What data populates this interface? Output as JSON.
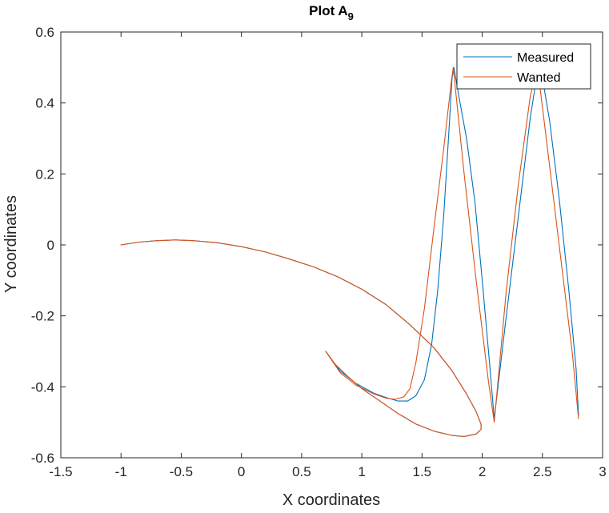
{
  "chart_data": {
    "type": "line",
    "title_main": "Plot A",
    "title_sub": "9",
    "xlabel": "X coordinates",
    "ylabel": "Y coordinates",
    "xlim": [
      -1.5,
      3
    ],
    "ylim": [
      -0.6,
      0.6
    ],
    "grid": false,
    "legend_position": "top-right",
    "x_ticks": [
      "-1.5",
      "-1",
      "-0.5",
      "0",
      "0.5",
      "1",
      "1.5",
      "2",
      "2.5",
      "3"
    ],
    "y_ticks": [
      "-0.6",
      "-0.4",
      "-0.2",
      "0",
      "0.2",
      "0.4",
      "0.6"
    ],
    "series": [
      {
        "name": "Measured",
        "color": "#0072BD",
        "points": [
          [
            -1.0,
            0.0
          ],
          [
            -0.85,
            0.008
          ],
          [
            -0.7,
            0.012
          ],
          [
            -0.55,
            0.014
          ],
          [
            -0.4,
            0.012
          ],
          [
            -0.2,
            0.006
          ],
          [
            0.0,
            -0.005
          ],
          [
            0.2,
            -0.02
          ],
          [
            0.4,
            -0.04
          ],
          [
            0.6,
            -0.062
          ],
          [
            0.8,
            -0.09
          ],
          [
            1.0,
            -0.125
          ],
          [
            1.2,
            -0.168
          ],
          [
            1.4,
            -0.225
          ],
          [
            1.6,
            -0.29
          ],
          [
            1.75,
            -0.355
          ],
          [
            1.87,
            -0.42
          ],
          [
            1.95,
            -0.47
          ],
          [
            1.99,
            -0.505
          ],
          [
            1.99,
            -0.52
          ],
          [
            1.95,
            -0.533
          ],
          [
            1.85,
            -0.54
          ],
          [
            1.75,
            -0.537
          ],
          [
            1.6,
            -0.525
          ],
          [
            1.45,
            -0.505
          ],
          [
            1.3,
            -0.475
          ],
          [
            1.15,
            -0.44
          ],
          [
            1.0,
            -0.405
          ],
          [
            0.88,
            -0.37
          ],
          [
            0.78,
            -0.337
          ],
          [
            0.7,
            -0.3
          ],
          [
            0.82,
            -0.355
          ],
          [
            0.95,
            -0.39
          ],
          [
            1.1,
            -0.418
          ],
          [
            1.2,
            -0.43
          ],
          [
            1.3,
            -0.44
          ],
          [
            1.38,
            -0.44
          ],
          [
            1.45,
            -0.425
          ],
          [
            1.52,
            -0.38
          ],
          [
            1.58,
            -0.28
          ],
          [
            1.63,
            -0.13
          ],
          [
            1.68,
            0.08
          ],
          [
            1.72,
            0.3
          ],
          [
            1.75,
            0.47
          ],
          [
            1.765,
            0.5
          ],
          [
            1.8,
            0.43
          ],
          [
            1.87,
            0.3
          ],
          [
            1.94,
            0.12
          ],
          [
            2.0,
            -0.1
          ],
          [
            2.06,
            -0.33
          ],
          [
            2.1,
            -0.49
          ],
          [
            2.19,
            -0.23
          ],
          [
            2.3,
            0.08
          ],
          [
            2.4,
            0.36
          ],
          [
            2.46,
            0.49
          ],
          [
            2.49,
            0.49
          ],
          [
            2.56,
            0.35
          ],
          [
            2.64,
            0.13
          ],
          [
            2.72,
            -0.13
          ],
          [
            2.78,
            -0.35
          ],
          [
            2.8,
            -0.48
          ]
        ]
      },
      {
        "name": "Wanted",
        "color": "#D95319",
        "points": [
          [
            -1.0,
            0.0
          ],
          [
            -0.85,
            0.008
          ],
          [
            -0.7,
            0.012
          ],
          [
            -0.55,
            0.014
          ],
          [
            -0.4,
            0.012
          ],
          [
            -0.2,
            0.006
          ],
          [
            0.0,
            -0.005
          ],
          [
            0.2,
            -0.02
          ],
          [
            0.4,
            -0.04
          ],
          [
            0.6,
            -0.062
          ],
          [
            0.8,
            -0.09
          ],
          [
            1.0,
            -0.125
          ],
          [
            1.2,
            -0.168
          ],
          [
            1.4,
            -0.225
          ],
          [
            1.6,
            -0.29
          ],
          [
            1.75,
            -0.355
          ],
          [
            1.87,
            -0.42
          ],
          [
            1.95,
            -0.47
          ],
          [
            1.99,
            -0.505
          ],
          [
            1.99,
            -0.52
          ],
          [
            1.95,
            -0.533
          ],
          [
            1.85,
            -0.54
          ],
          [
            1.75,
            -0.537
          ],
          [
            1.6,
            -0.525
          ],
          [
            1.45,
            -0.505
          ],
          [
            1.3,
            -0.475
          ],
          [
            1.15,
            -0.44
          ],
          [
            1.0,
            -0.405
          ],
          [
            0.88,
            -0.37
          ],
          [
            0.78,
            -0.337
          ],
          [
            0.7,
            -0.3
          ],
          [
            0.82,
            -0.36
          ],
          [
            0.95,
            -0.395
          ],
          [
            1.1,
            -0.42
          ],
          [
            1.2,
            -0.432
          ],
          [
            1.28,
            -0.435
          ],
          [
            1.35,
            -0.428
          ],
          [
            1.4,
            -0.405
          ],
          [
            1.45,
            -0.33
          ],
          [
            1.52,
            -0.18
          ],
          [
            1.6,
            0.05
          ],
          [
            1.68,
            0.27
          ],
          [
            1.74,
            0.45
          ],
          [
            1.76,
            0.5
          ],
          [
            1.85,
            0.2
          ],
          [
            1.95,
            -0.1
          ],
          [
            2.05,
            -0.38
          ],
          [
            2.1,
            -0.5
          ],
          [
            2.2,
            -0.13
          ],
          [
            2.3,
            0.17
          ],
          [
            2.4,
            0.42
          ],
          [
            2.46,
            0.5
          ],
          [
            2.55,
            0.25
          ],
          [
            2.65,
            -0.03
          ],
          [
            2.75,
            -0.31
          ],
          [
            2.8,
            -0.49
          ]
        ]
      }
    ]
  }
}
